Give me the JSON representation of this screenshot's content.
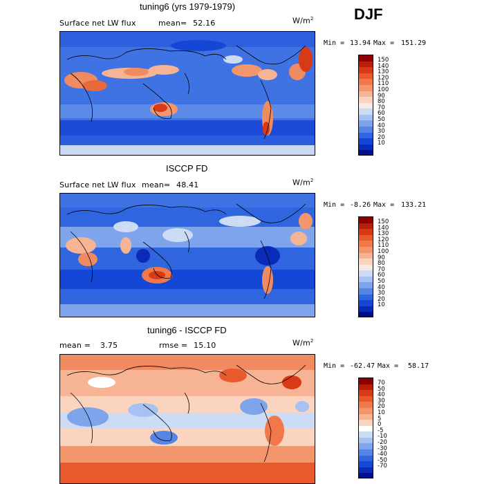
{
  "season": "DJF",
  "panels": [
    {
      "title": "tuning6 (yrs 1979-1979)",
      "left_label": "Surface net LW flux",
      "mean_label": "mean=",
      "mean_value": "52.16",
      "units": "W/m",
      "units_exp": "2",
      "min_label": "Min =",
      "min_value": "13.94",
      "max_label": "Max =",
      "max_value": "151.29"
    },
    {
      "title": "ISCCP FD",
      "left_label": "Surface net LW flux",
      "mean_label": "mean=",
      "mean_value": "48.41",
      "units": "W/m",
      "units_exp": "2",
      "min_label": "Min =",
      "min_value": "-8.26",
      "max_label": "Max =",
      "max_value": "133.21"
    },
    {
      "title": "tuning6 - ISCCP FD",
      "left_label": "mean =",
      "mean_label": "",
      "mean_value": "3.75",
      "rmse_label": "rmse =",
      "rmse_value": "15.10",
      "units": "W/m",
      "units_exp": "2",
      "min_label": "Min =",
      "min_value": "-62.47",
      "max_label": "Max =",
      "max_value": "58.17"
    }
  ],
  "chart_data": [
    {
      "type": "heatmap",
      "title": "tuning6 (yrs 1979-1979)",
      "field": "Surface net LW flux",
      "units": "W/m2",
      "mean": 52.16,
      "min": 13.94,
      "max": 151.29,
      "colorbar_ticks": [
        "150",
        "140",
        "130",
        "120",
        "110",
        "100",
        "90",
        "80",
        "70",
        "60",
        "50",
        "40",
        "30",
        "20",
        "10"
      ],
      "colorbar_colors": [
        "#8b0000",
        "#b81e0a",
        "#d73a14",
        "#e85a2c",
        "#f0784a",
        "#f4966c",
        "#f7b494",
        "#fad4bf",
        "#f6ebe4",
        "#ccdcf5",
        "#a7c2f2",
        "#7ea4ec",
        "#5685e6",
        "#2f66e0",
        "#1447d6",
        "#0a2bb8",
        "#00108c"
      ],
      "colorbar_scale": "sequential"
    },
    {
      "type": "heatmap",
      "title": "ISCCP FD",
      "field": "Surface net LW flux",
      "units": "W/m2",
      "mean": 48.41,
      "min": -8.26,
      "max": 133.21,
      "colorbar_ticks": [
        "150",
        "140",
        "130",
        "120",
        "110",
        "100",
        "90",
        "80",
        "70",
        "60",
        "50",
        "40",
        "30",
        "20",
        "10"
      ],
      "colorbar_colors": [
        "#8b0000",
        "#b81e0a",
        "#d73a14",
        "#e85a2c",
        "#f0784a",
        "#f4966c",
        "#f7b494",
        "#fad4bf",
        "#f6ebe4",
        "#ccdcf5",
        "#a7c2f2",
        "#7ea4ec",
        "#5685e6",
        "#2f66e0",
        "#1447d6",
        "#0a2bb8",
        "#00108c"
      ],
      "colorbar_scale": "sequential"
    },
    {
      "type": "heatmap",
      "title": "tuning6 - ISCCP FD",
      "units": "W/m2",
      "mean": 3.75,
      "rmse": 15.1,
      "min": -62.47,
      "max": 58.17,
      "colorbar_ticks": [
        "70",
        "50",
        "40",
        "30",
        "20",
        "10",
        "5",
        "0",
        "-5",
        "-10",
        "-20",
        "-30",
        "-40",
        "-50",
        "-70"
      ],
      "colorbar_colors": [
        "#8b0000",
        "#b81e0a",
        "#d73a14",
        "#e85a2c",
        "#f0784a",
        "#f4966c",
        "#f7b494",
        "#fad4bf",
        "#ffffff",
        "#ccdcf5",
        "#a7c2f2",
        "#7ea4ec",
        "#5685e6",
        "#2f66e0",
        "#1447d6",
        "#0a2bb8",
        "#00108c"
      ],
      "colorbar_scale": "diverging"
    }
  ]
}
